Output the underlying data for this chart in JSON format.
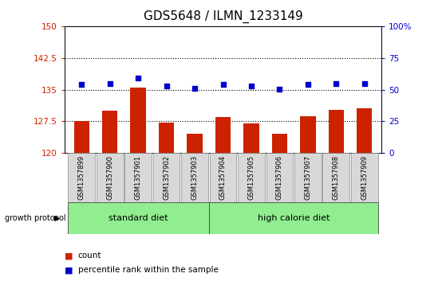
{
  "title": "GDS5648 / ILMN_1233149",
  "samples": [
    "GSM1357899",
    "GSM1357900",
    "GSM1357901",
    "GSM1357902",
    "GSM1357903",
    "GSM1357904",
    "GSM1357905",
    "GSM1357906",
    "GSM1357907",
    "GSM1357908",
    "GSM1357909"
  ],
  "bar_values": [
    127.5,
    130.0,
    135.5,
    127.2,
    124.5,
    128.5,
    127.0,
    124.5,
    128.8,
    130.2,
    130.5
  ],
  "scatter_values": [
    136.2,
    136.5,
    137.8,
    135.8,
    135.2,
    136.3,
    135.8,
    135.1,
    136.2,
    136.4,
    136.5
  ],
  "bar_color": "#cc2200",
  "scatter_color": "#0000cc",
  "ylim_left": [
    120,
    150
  ],
  "ylim_right": [
    0,
    100
  ],
  "yticks_left": [
    120,
    127.5,
    135,
    142.5,
    150
  ],
  "yticks_right": [
    0,
    25,
    50,
    75,
    100
  ],
  "ytick_labels_right": [
    "0",
    "25",
    "50",
    "75",
    "100%"
  ],
  "hlines": [
    127.5,
    135.0,
    142.5
  ],
  "group1_label": "standard diet",
  "group2_label": "high calorie diet",
  "group1_count": 5,
  "group2_count": 6,
  "group_label": "growth protocol",
  "legend_count_label": "count",
  "legend_pct_label": "percentile rank within the sample",
  "sample_bg_color": "#d8d8d8",
  "group_bg_color": "#90ee90",
  "title_fontsize": 11,
  "tick_fontsize": 7.5,
  "label_fontsize": 8,
  "sample_fontsize": 6,
  "group_fontsize": 8
}
